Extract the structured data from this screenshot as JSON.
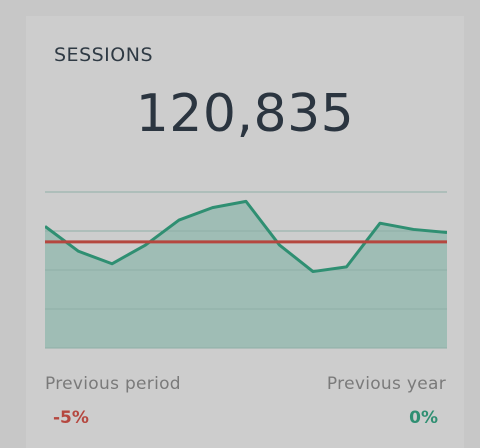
{
  "widget": {
    "title": "SESSIONS",
    "value": "120,835"
  },
  "comparison": {
    "previous_period_label": "Previous period",
    "previous_period_value": "-5%",
    "previous_year_label": "Previous year",
    "previous_year_value": "0%"
  },
  "colors": {
    "line": "#2f8f72",
    "area": "#9fbdb5",
    "baseline": "#b5473f",
    "negative": "#b5473f",
    "positive": "#2f8f72"
  },
  "chart_data": {
    "type": "area",
    "x": [
      0,
      1,
      2,
      3,
      4,
      5,
      6,
      7,
      8,
      9,
      10,
      11,
      12
    ],
    "values": [
      78,
      62,
      54,
      66,
      82,
      90,
      94,
      66,
      49,
      52,
      80,
      76,
      74
    ],
    "baseline": 68,
    "ylim": [
      0,
      100
    ],
    "grid": true,
    "gridlines": [
      0,
      25,
      50,
      75,
      100
    ]
  }
}
